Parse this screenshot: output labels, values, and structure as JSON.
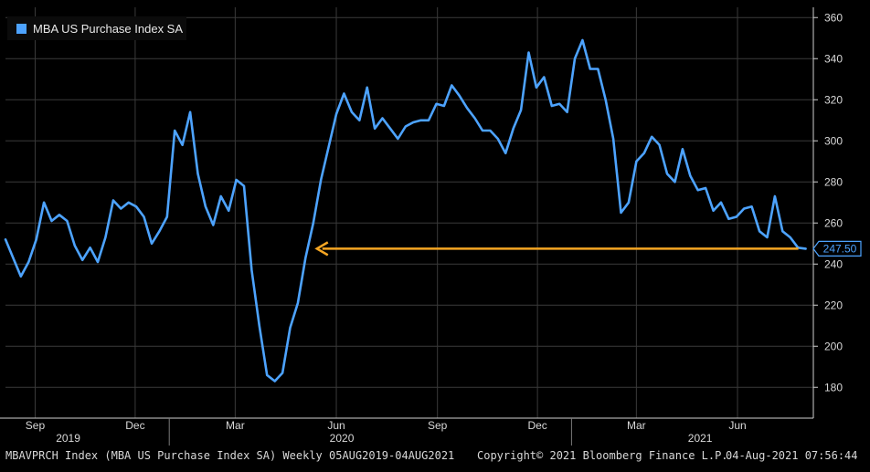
{
  "chart_data": {
    "type": "line",
    "title": "",
    "xlabel": "",
    "ylabel": "",
    "legend": {
      "position": "top-left",
      "label": "MBA US Purchase Index SA",
      "color": "#4da3ff"
    },
    "ylim": [
      165,
      365
    ],
    "y_ticks": [
      180,
      200,
      220,
      240,
      260,
      280,
      300,
      320,
      340,
      360
    ],
    "x_range": [
      "2019-08-05",
      "2021-08-09"
    ],
    "month_ticks": [
      {
        "label": "Sep",
        "date": "2019-09-01"
      },
      {
        "label": "Dec",
        "date": "2019-12-01"
      },
      {
        "label": "Mar",
        "date": "2020-03-01"
      },
      {
        "label": "Jun",
        "date": "2020-06-01"
      },
      {
        "label": "Sep",
        "date": "2020-09-01"
      },
      {
        "label": "Dec",
        "date": "2020-12-01"
      },
      {
        "label": "Mar",
        "date": "2021-03-01"
      },
      {
        "label": "Jun",
        "date": "2021-06-01"
      }
    ],
    "year_labels": [
      {
        "label": "2019",
        "date": "2019-10-01"
      },
      {
        "label": "2020",
        "date": "2020-06-06"
      },
      {
        "label": "2021",
        "date": "2021-04-28"
      }
    ],
    "year_separators": [
      "2020-01-01",
      "2021-01-01"
    ],
    "grid": true,
    "line_color": "#4da3ff",
    "series": [
      {
        "name": "MBA US Purchase Index SA",
        "x": [
          "2019-08-05",
          "2019-08-19",
          "2019-08-26",
          "2019-09-02",
          "2019-09-09",
          "2019-09-16",
          "2019-09-23",
          "2019-09-30",
          "2019-10-07",
          "2019-10-14",
          "2019-10-21",
          "2019-10-28",
          "2019-11-04",
          "2019-11-11",
          "2019-11-18",
          "2019-11-25",
          "2019-12-02",
          "2019-12-09",
          "2019-12-16",
          "2019-12-23",
          "2019-12-30",
          "2020-01-06",
          "2020-01-13",
          "2020-01-20",
          "2020-01-27",
          "2020-02-03",
          "2020-02-10",
          "2020-02-17",
          "2020-02-24",
          "2020-03-02",
          "2020-03-09",
          "2020-03-16",
          "2020-03-23",
          "2020-03-30",
          "2020-04-06",
          "2020-04-13",
          "2020-04-20",
          "2020-04-27",
          "2020-05-04",
          "2020-05-11",
          "2020-05-18",
          "2020-05-25",
          "2020-06-01",
          "2020-06-08",
          "2020-06-15",
          "2020-06-22",
          "2020-06-29",
          "2020-07-06",
          "2020-07-13",
          "2020-07-20",
          "2020-07-27",
          "2020-08-03",
          "2020-08-10",
          "2020-08-17",
          "2020-08-24",
          "2020-08-31",
          "2020-09-07",
          "2020-09-14",
          "2020-09-21",
          "2020-09-28",
          "2020-10-05",
          "2020-10-12",
          "2020-10-19",
          "2020-10-26",
          "2020-11-02",
          "2020-11-09",
          "2020-11-16",
          "2020-11-23",
          "2020-11-30",
          "2020-12-07",
          "2020-12-14",
          "2020-12-21",
          "2020-12-28",
          "2021-01-04",
          "2021-01-11",
          "2021-01-18",
          "2021-01-25",
          "2021-02-01",
          "2021-02-08",
          "2021-02-15",
          "2021-02-22",
          "2021-03-01",
          "2021-03-08",
          "2021-03-15",
          "2021-03-22",
          "2021-03-29",
          "2021-04-05",
          "2021-04-12",
          "2021-04-19",
          "2021-04-26",
          "2021-05-03",
          "2021-05-10",
          "2021-05-17",
          "2021-05-24",
          "2021-05-31",
          "2021-06-07",
          "2021-06-14",
          "2021-06-21",
          "2021-06-28",
          "2021-07-05",
          "2021-07-12",
          "2021-07-19",
          "2021-07-26",
          "2021-08-02"
        ],
        "values": [
          252,
          234,
          241,
          252,
          270,
          261,
          264,
          261,
          249,
          242,
          248,
          241,
          253,
          271,
          267,
          270,
          268,
          263,
          250,
          256,
          263,
          305,
          298,
          314,
          284,
          268,
          259,
          273,
          266,
          281,
          278,
          237,
          210,
          186,
          183,
          187,
          209,
          221,
          243,
          260,
          281,
          297,
          313,
          323,
          314,
          310,
          326,
          306,
          311,
          306,
          301,
          307,
          309,
          310,
          310,
          318,
          317,
          327,
          322,
          316,
          311,
          305,
          305,
          301,
          294,
          306,
          315,
          343,
          326,
          331,
          317,
          318,
          314,
          340,
          349,
          335,
          335,
          320,
          301,
          265,
          270,
          290,
          294,
          302,
          298,
          284,
          280,
          296,
          283,
          276,
          277,
          266,
          270,
          262,
          263,
          267,
          268,
          256,
          253,
          273,
          256,
          253,
          248,
          247.5
        ]
      }
    ],
    "last_value_label": "247.50",
    "annotation_arrow": {
      "from": [
        "2021-08-02",
        247.5
      ],
      "to": [
        "2020-05-11",
        247.5
      ],
      "color": "#f5a623"
    }
  },
  "footer": {
    "left": "MBAVPRCH Index (MBA US Purchase Index SA) Weekly 05AUG2019-04AUG2021",
    "center": "Copyright© 2021 Bloomberg Finance L.P.",
    "right": "04-Aug-2021 07:56:44"
  }
}
